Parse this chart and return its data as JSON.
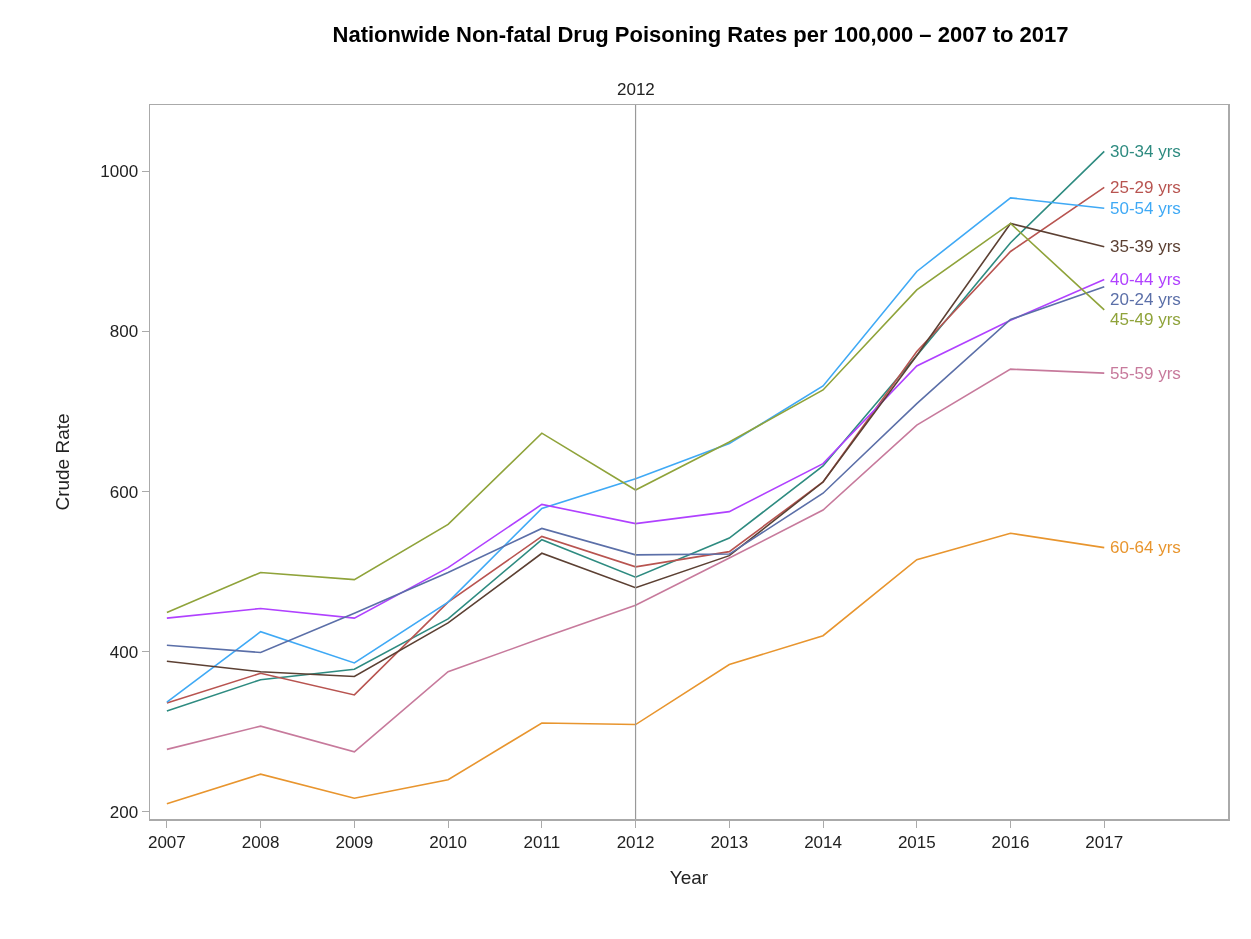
{
  "chart_data": {
    "type": "line",
    "title": "Nationwide Non-fatal Drug Poisoning Rates per 100,000 – 2007 to 2017",
    "xlabel": "Year",
    "ylabel": "Crude Rate",
    "x": [
      2007,
      2008,
      2009,
      2010,
      2011,
      2012,
      2013,
      2014,
      2015,
      2016,
      2017
    ],
    "xlim": [
      2006.82,
      2018.32
    ],
    "xticks": [
      2007,
      2008,
      2009,
      2010,
      2011,
      2012,
      2013,
      2014,
      2015,
      2016,
      2017
    ],
    "ylim": [
      191,
      1083
    ],
    "yticks": [
      200,
      400,
      600,
      800,
      1000
    ],
    "grid": false,
    "legend": false,
    "marker": "none",
    "line_style": "solid",
    "ref_lines": [
      {
        "axis": "x",
        "value": 2012,
        "label": "2012",
        "color": "#999999"
      }
    ],
    "series": [
      {
        "name": "30-34 yrs",
        "color": "#2e8b80",
        "values": [
          326,
          365,
          378,
          441,
          540,
          493,
          542,
          632,
          770,
          911,
          1025
        ]
      },
      {
        "name": "25-29 yrs",
        "color": "#b85450",
        "values": [
          336,
          373,
          346,
          462,
          544,
          506,
          525,
          612,
          775,
          900,
          980
        ]
      },
      {
        "name": "50-54 yrs",
        "color": "#3fa9f5",
        "values": [
          337,
          425,
          386,
          462,
          579,
          616,
          660,
          732,
          875,
          967,
          954
        ]
      },
      {
        "name": "40-44 yrs",
        "color": "#b041ff",
        "values": [
          442,
          454,
          442,
          505,
          584,
          560,
          575,
          635,
          757,
          814,
          865
        ]
      },
      {
        "name": "35-39 yrs",
        "color": "#5c4033",
        "values": [
          388,
          375,
          369,
          436,
          523,
          480,
          520,
          612,
          770,
          935,
          906
        ]
      },
      {
        "name": "20-24 yrs",
        "color": "#5b6fa8",
        "values": [
          408,
          399,
          448,
          499,
          554,
          521,
          522,
          598,
          710,
          815,
          856
        ]
      },
      {
        "name": "45-49 yrs",
        "color": "#8fa33a",
        "values": [
          449,
          499,
          490,
          559,
          673,
          602,
          662,
          727,
          852,
          935,
          827
        ]
      },
      {
        "name": "55-59 yrs",
        "color": "#c77a9c",
        "values": [
          278,
          307,
          275,
          375,
          417,
          458,
          517,
          577,
          683,
          753,
          748
        ]
      },
      {
        "name": "60-64 yrs",
        "color": "#e8952e",
        "values": [
          210,
          247,
          217,
          240,
          311,
          309,
          384,
          420,
          515,
          548,
          530
        ]
      }
    ]
  }
}
